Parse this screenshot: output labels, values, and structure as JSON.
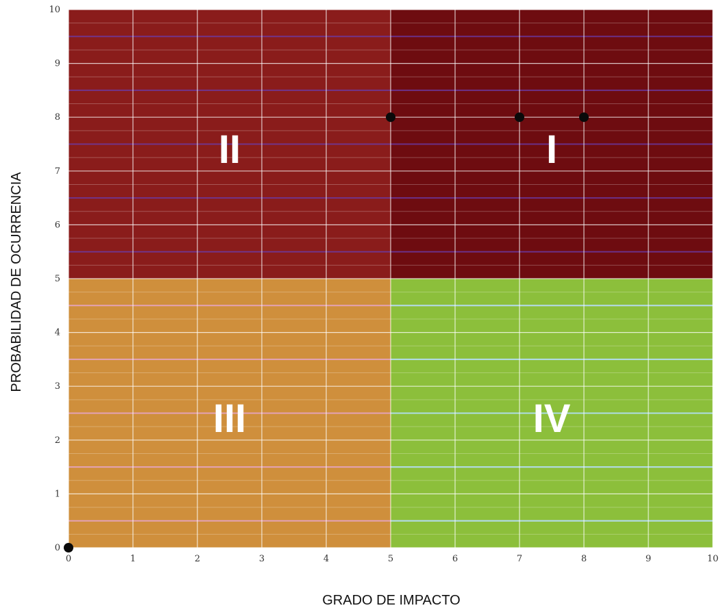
{
  "chart_data": {
    "type": "scatter",
    "title": "",
    "xlabel": "GRADO DE IMPACTO",
    "ylabel": "PROBABILIDAD DE OCURRENCIA",
    "xlim": [
      0,
      10
    ],
    "ylim": [
      0,
      10
    ],
    "x_ticks": [
      "0",
      "1",
      "2",
      "3",
      "4",
      "5",
      "6",
      "7",
      "8",
      "9",
      "10"
    ],
    "y_ticks": [
      "0",
      "1",
      "2",
      "3",
      "4",
      "5",
      "6",
      "7",
      "8",
      "9",
      "10"
    ],
    "grid": true,
    "quadrants": [
      {
        "label": "I",
        "x_range": [
          5,
          10
        ],
        "y_range": [
          5,
          10
        ],
        "color": "#6e0c10"
      },
      {
        "label": "II",
        "x_range": [
          0,
          5
        ],
        "y_range": [
          5,
          10
        ],
        "color": "#8a1c1b"
      },
      {
        "label": "III",
        "x_range": [
          0,
          5
        ],
        "y_range": [
          0,
          5
        ],
        "color": "#cf8f3c"
      },
      {
        "label": "IV",
        "x_range": [
          5,
          10
        ],
        "y_range": [
          0,
          5
        ],
        "color": "#8cbf3b"
      }
    ],
    "points": [
      {
        "x": 0,
        "y": 0
      },
      {
        "x": 5,
        "y": 8
      },
      {
        "x": 7,
        "y": 8
      },
      {
        "x": 8,
        "y": 8
      }
    ]
  }
}
